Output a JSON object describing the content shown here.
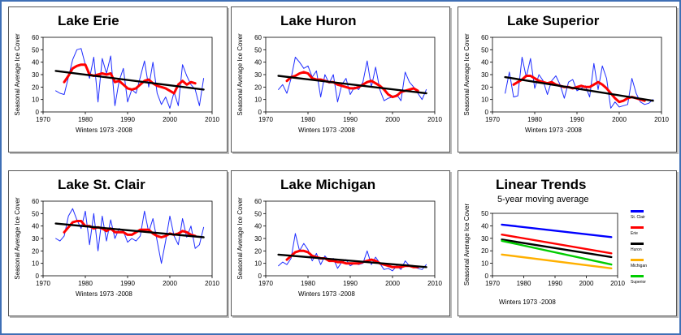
{
  "colors": {
    "frame": "#3f6fb5",
    "annual": "#1f2dff",
    "moving_avg": "#ff0000",
    "trend": "#000000"
  },
  "chart_data": [
    {
      "type": "line",
      "title": "Lake Erie",
      "ylabel": "Seasonal Average Ice Cover",
      "xlabel": "Winters 1973 -2008",
      "xlim": [
        1970,
        2010
      ],
      "ylim": [
        0,
        60
      ],
      "xticks": [
        "1970",
        "1980",
        "1990",
        "2000",
        "2010"
      ],
      "yticks": [
        "0",
        "10",
        "20",
        "30",
        "40",
        "50",
        "60"
      ],
      "series": [
        {
          "role": "annual",
          "x": [
            1973,
            1974,
            1975,
            1976,
            1977,
            1978,
            1979,
            1980,
            1981,
            1982,
            1983,
            1984,
            1985,
            1986,
            1987,
            1988,
            1989,
            1990,
            1991,
            1992,
            1993,
            1994,
            1995,
            1996,
            1997,
            1998,
            1999,
            2000,
            2001,
            2002,
            2003,
            2004,
            2005,
            2006,
            2007,
            2008
          ],
          "values": [
            17,
            15,
            14,
            28,
            42,
            50,
            51,
            38,
            27,
            44,
            8,
            43,
            31,
            45,
            5,
            25,
            35,
            8,
            18,
            15,
            28,
            41,
            20,
            40,
            15,
            6,
            12,
            3,
            16,
            5,
            38,
            29,
            22,
            18,
            5,
            27
          ]
        },
        {
          "role": "moving_avg",
          "x": [
            1975,
            1976,
            1977,
            1978,
            1979,
            1980,
            1981,
            1982,
            1983,
            1984,
            1985,
            1986,
            1987,
            1988,
            1989,
            1990,
            1991,
            1992,
            1993,
            1994,
            1995,
            1996,
            1997,
            1998,
            1999,
            2000,
            2001,
            2002,
            2003,
            2004,
            2005,
            2006
          ],
          "values": [
            24,
            29,
            35,
            37,
            38,
            38,
            30,
            29,
            30,
            31,
            30,
            31,
            24,
            25,
            22,
            19,
            18,
            19,
            22,
            25,
            26,
            23,
            21,
            20,
            19,
            17,
            15,
            22,
            25,
            22,
            24,
            23
          ]
        },
        {
          "role": "trend",
          "x": [
            1973,
            2008
          ],
          "values": [
            33,
            18
          ]
        }
      ]
    },
    {
      "type": "line",
      "title": "Lake Huron",
      "ylabel": "Seasonal Average Ice Cover",
      "xlabel": "Winters 1973 -2008",
      "xlim": [
        1970,
        2010
      ],
      "ylim": [
        0,
        60
      ],
      "xticks": [
        "1970",
        "1980",
        "1990",
        "2000",
        "2010"
      ],
      "yticks": [
        "0",
        "10",
        "20",
        "30",
        "40",
        "50",
        "60"
      ],
      "series": [
        {
          "role": "annual",
          "x": [
            1973,
            1974,
            1975,
            1976,
            1977,
            1978,
            1979,
            1980,
            1981,
            1982,
            1983,
            1984,
            1985,
            1986,
            1987,
            1988,
            1989,
            1990,
            1991,
            1992,
            1993,
            1994,
            1995,
            1996,
            1997,
            1998,
            1999,
            2000,
            2001,
            2002,
            2003,
            2004,
            2005,
            2006,
            2007,
            2008
          ],
          "values": [
            18,
            22,
            15,
            27,
            44,
            40,
            35,
            37,
            28,
            33,
            12,
            30,
            23,
            30,
            8,
            22,
            27,
            14,
            20,
            18,
            24,
            41,
            20,
            36,
            18,
            9,
            11,
            12,
            14,
            9,
            32,
            24,
            20,
            15,
            10,
            18
          ]
        },
        {
          "role": "moving_avg",
          "x": [
            1975,
            1976,
            1977,
            1978,
            1979,
            1980,
            1981,
            1982,
            1983,
            1984,
            1985,
            1986,
            1987,
            1988,
            1989,
            1990,
            1991,
            1992,
            1993,
            1994,
            1995,
            1996,
            1997,
            1998,
            1999,
            2000,
            2001,
            2002,
            2003,
            2004,
            2005,
            2006
          ],
          "values": [
            25,
            28,
            29,
            31,
            32,
            31,
            27,
            26,
            26,
            25,
            24,
            24,
            22,
            21,
            20,
            19,
            19,
            20,
            22,
            24,
            25,
            23,
            21,
            18,
            14,
            12,
            13,
            16,
            17,
            18,
            19,
            17
          ]
        },
        {
          "role": "trend",
          "x": [
            1973,
            2008
          ],
          "values": [
            29,
            15
          ]
        }
      ]
    },
    {
      "type": "line",
      "title": "Lake Superior",
      "ylabel": "Seasonal Average Ice Cover",
      "xlabel": "Winters 1973 -2008",
      "xlim": [
        1970,
        2010
      ],
      "ylim": [
        0,
        60
      ],
      "xticks": [
        "1970",
        "1980",
        "1990",
        "2000",
        "2010"
      ],
      "yticks": [
        "0",
        "10",
        "20",
        "30",
        "40",
        "50",
        "60"
      ],
      "series": [
        {
          "role": "annual",
          "x": [
            1973,
            1974,
            1975,
            1976,
            1977,
            1978,
            1979,
            1980,
            1981,
            1982,
            1983,
            1984,
            1985,
            1986,
            1987,
            1988,
            1989,
            1990,
            1991,
            1992,
            1993,
            1994,
            1995,
            1996,
            1997,
            1998,
            1999,
            2000,
            2001,
            2002,
            2003,
            2004,
            2005,
            2006,
            2007,
            2008
          ],
          "values": [
            15,
            32,
            12,
            13,
            44,
            28,
            43,
            19,
            30,
            25,
            14,
            25,
            29,
            22,
            11,
            24,
            26,
            17,
            19,
            21,
            12,
            39,
            18,
            37,
            27,
            3,
            8,
            4,
            5,
            6,
            27,
            15,
            8,
            6,
            7,
            10
          ]
        },
        {
          "role": "moving_avg",
          "x": [
            1975,
            1976,
            1977,
            1978,
            1979,
            1980,
            1981,
            1982,
            1983,
            1984,
            1985,
            1986,
            1987,
            1988,
            1989,
            1990,
            1991,
            1992,
            1993,
            1994,
            1995,
            1996,
            1997,
            1998,
            1999,
            2000,
            2001,
            2002,
            2003,
            2004,
            2005,
            2006
          ],
          "values": [
            22,
            24,
            26,
            29,
            29,
            27,
            25,
            24,
            23,
            24,
            22,
            21,
            20,
            20,
            19,
            20,
            21,
            20,
            20,
            22,
            24,
            22,
            19,
            15,
            11,
            8,
            9,
            11,
            12,
            11,
            10,
            9
          ]
        },
        {
          "role": "trend",
          "x": [
            1973,
            2008
          ],
          "values": [
            28,
            9
          ]
        }
      ]
    },
    {
      "type": "line",
      "title": "Lake St. Clair",
      "ylabel": "Seasonal Average Ice Cover",
      "xlabel": "Winters 1973 -2008",
      "xlim": [
        1970,
        2010
      ],
      "ylim": [
        0,
        60
      ],
      "xticks": [
        "1970",
        "1980",
        "1990",
        "2000",
        "2010"
      ],
      "yticks": [
        "0",
        "10",
        "20",
        "30",
        "40",
        "50",
        "60"
      ],
      "series": [
        {
          "role": "annual",
          "x": [
            1973,
            1974,
            1975,
            1976,
            1977,
            1978,
            1979,
            1980,
            1981,
            1982,
            1983,
            1984,
            1985,
            1986,
            1987,
            1988,
            1989,
            1990,
            1991,
            1992,
            1993,
            1994,
            1995,
            1996,
            1997,
            1998,
            1999,
            2000,
            2001,
            2002,
            2003,
            2004,
            2005,
            2006,
            2007,
            2008
          ],
          "values": [
            30,
            28,
            32,
            48,
            54,
            45,
            38,
            52,
            25,
            50,
            20,
            48,
            28,
            45,
            30,
            38,
            36,
            27,
            30,
            28,
            32,
            52,
            35,
            46,
            28,
            10,
            28,
            48,
            32,
            25,
            46,
            31,
            40,
            22,
            25,
            39
          ]
        },
        {
          "role": "moving_avg",
          "x": [
            1975,
            1976,
            1977,
            1978,
            1979,
            1980,
            1981,
            1982,
            1983,
            1984,
            1985,
            1986,
            1987,
            1988,
            1989,
            1990,
            1991,
            1992,
            1993,
            1994,
            1995,
            1996,
            1997,
            1998,
            1999,
            2000,
            2001,
            2002,
            2003,
            2004,
            2005,
            2006
          ],
          "values": [
            35,
            39,
            43,
            44,
            44,
            40,
            40,
            38,
            39,
            38,
            36,
            38,
            35,
            35,
            35,
            33,
            33,
            35,
            37,
            37,
            37,
            34,
            32,
            31,
            32,
            34,
            33,
            34,
            36,
            35,
            33,
            32
          ]
        },
        {
          "role": "trend",
          "x": [
            1973,
            2008
          ],
          "values": [
            42,
            31
          ]
        }
      ]
    },
    {
      "type": "line",
      "title": "Lake Michigan",
      "ylabel": "Seasonal Average Ice Cover",
      "xlabel": "Winters 1973 -2008",
      "xlim": [
        1970,
        2010
      ],
      "ylim": [
        0,
        60
      ],
      "xticks": [
        "1970",
        "1980",
        "1990",
        "2000",
        "2010"
      ],
      "yticks": [
        "0",
        "10",
        "20",
        "30",
        "40",
        "50",
        "60"
      ],
      "series": [
        {
          "role": "annual",
          "x": [
            1973,
            1974,
            1975,
            1976,
            1977,
            1978,
            1979,
            1980,
            1981,
            1982,
            1983,
            1984,
            1985,
            1986,
            1987,
            1988,
            1989,
            1990,
            1991,
            1992,
            1993,
            1994,
            1995,
            1996,
            1997,
            1998,
            1999,
            2000,
            2001,
            2002,
            2003,
            2004,
            2005,
            2006,
            2007,
            2008
          ],
          "values": [
            8,
            11,
            9,
            14,
            34,
            20,
            26,
            21,
            12,
            18,
            9,
            16,
            12,
            14,
            6,
            11,
            13,
            8,
            10,
            9,
            10,
            20,
            9,
            15,
            10,
            5,
            6,
            4,
            8,
            5,
            12,
            8,
            7,
            6,
            5,
            9
          ]
        },
        {
          "role": "moving_avg",
          "x": [
            1975,
            1976,
            1977,
            1978,
            1979,
            1980,
            1981,
            1982,
            1983,
            1984,
            1985,
            1986,
            1987,
            1988,
            1989,
            1990,
            1991,
            1992,
            1993,
            1994,
            1995,
            1996,
            1997,
            1998,
            1999,
            2000,
            2001,
            2002,
            2003,
            2004,
            2005,
            2006
          ],
          "values": [
            13,
            16,
            19,
            20,
            20,
            19,
            16,
            15,
            14,
            14,
            12,
            12,
            11,
            11,
            10,
            10,
            10,
            10,
            11,
            12,
            13,
            12,
            10,
            9,
            8,
            7,
            7,
            7,
            8,
            8,
            7,
            7
          ]
        },
        {
          "role": "trend",
          "x": [
            1973,
            2008
          ],
          "values": [
            17,
            7
          ]
        }
      ]
    },
    {
      "type": "line",
      "title": "Linear Trends",
      "subtitle": "5-year moving average",
      "ylabel": "Seasonal Average Ice Cover",
      "xlabel": "Winters 1973 -2008",
      "xlim": [
        1970,
        2010
      ],
      "ylim": [
        0,
        50
      ],
      "xticks": [
        "1970",
        "1980",
        "1990",
        "2000",
        "2010"
      ],
      "yticks": [
        "0",
        "10",
        "20",
        "30",
        "40",
        "50"
      ],
      "series": [
        {
          "name": "St. Clair",
          "color": "#0000ff",
          "x": [
            1973,
            2008
          ],
          "values": [
            41,
            31
          ]
        },
        {
          "name": "Erie",
          "color": "#ff0000",
          "x": [
            1973,
            2008
          ],
          "values": [
            33,
            18
          ]
        },
        {
          "name": "Huron",
          "color": "#000000",
          "x": [
            1973,
            2008
          ],
          "values": [
            29,
            15
          ]
        },
        {
          "name": "Michigan",
          "color": "#ffb000",
          "x": [
            1973,
            2008
          ],
          "values": [
            17,
            6
          ]
        },
        {
          "name": "Superior",
          "color": "#00cc00",
          "x": [
            1973,
            2008
          ],
          "values": [
            28,
            9
          ]
        }
      ],
      "legend_placement": "right"
    }
  ]
}
